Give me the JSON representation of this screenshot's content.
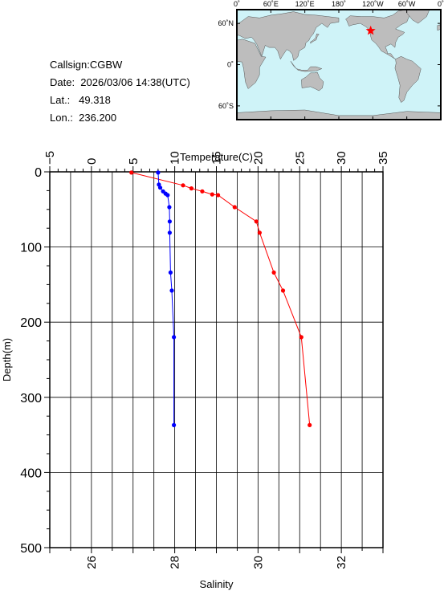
{
  "station": {
    "callsign": "Callsign:CGBW",
    "date": "Date:  2026/03/06 14:38(UTC)",
    "lat": "Lat.:   49.318",
    "lon": "Lon.:  236.200"
  },
  "map": {
    "lon_labels": [
      "0˚",
      "60˚E",
      "120˚E",
      "180˚",
      "120˚W",
      "60˚W",
      "0˚"
    ],
    "lat_labels": [
      "60˚N",
      "0˚",
      "60˚S"
    ],
    "marker": {
      "lon": 236.2,
      "lat": 49.318
    },
    "ocean_color": "#cff3f8",
    "land_color": "#bdbdbd",
    "marker_color": "#ff0000"
  },
  "chart_data": {
    "type": "line",
    "ylabel": "Depth(m)",
    "ylim": [
      0,
      500
    ],
    "y_ticks": [
      "0",
      "100",
      "200",
      "300",
      "400",
      "500"
    ],
    "top_axis": {
      "label": "Temperature(C)",
      "range": [
        -5,
        35
      ],
      "ticks": [
        "−5",
        "0",
        "5",
        "10",
        "15",
        "20",
        "25",
        "30",
        "35"
      ]
    },
    "bottom_axis": {
      "label": "Salinity",
      "range": [
        25,
        33
      ],
      "ticks": [
        "26",
        "28",
        "30",
        "32"
      ]
    },
    "series": [
      {
        "axis": "top",
        "color": "#ff0000",
        "points": [
          {
            "x": 4.8,
            "y": 1
          },
          {
            "x": 11.0,
            "y": 18
          },
          {
            "x": 12.0,
            "y": 22
          },
          {
            "x": 13.3,
            "y": 26
          },
          {
            "x": 14.5,
            "y": 30
          },
          {
            "x": 15.2,
            "y": 31
          },
          {
            "x": 17.2,
            "y": 47
          },
          {
            "x": 19.8,
            "y": 66
          },
          {
            "x": 20.2,
            "y": 81
          },
          {
            "x": 21.9,
            "y": 134
          },
          {
            "x": 23.0,
            "y": 158
          },
          {
            "x": 25.2,
            "y": 220
          },
          {
            "x": 26.2,
            "y": 337
          }
        ]
      },
      {
        "axis": "bottom",
        "color": "#0000ff",
        "points": [
          {
            "x": 27.6,
            "y": 1
          },
          {
            "x": 27.62,
            "y": 17
          },
          {
            "x": 27.65,
            "y": 21
          },
          {
            "x": 27.72,
            "y": 26
          },
          {
            "x": 27.78,
            "y": 29
          },
          {
            "x": 27.83,
            "y": 31
          },
          {
            "x": 27.87,
            "y": 47
          },
          {
            "x": 27.88,
            "y": 66
          },
          {
            "x": 27.88,
            "y": 81
          },
          {
            "x": 27.9,
            "y": 134
          },
          {
            "x": 27.93,
            "y": 158
          },
          {
            "x": 27.98,
            "y": 220
          },
          {
            "x": 27.98,
            "y": 337
          }
        ]
      }
    ],
    "grid": true
  }
}
